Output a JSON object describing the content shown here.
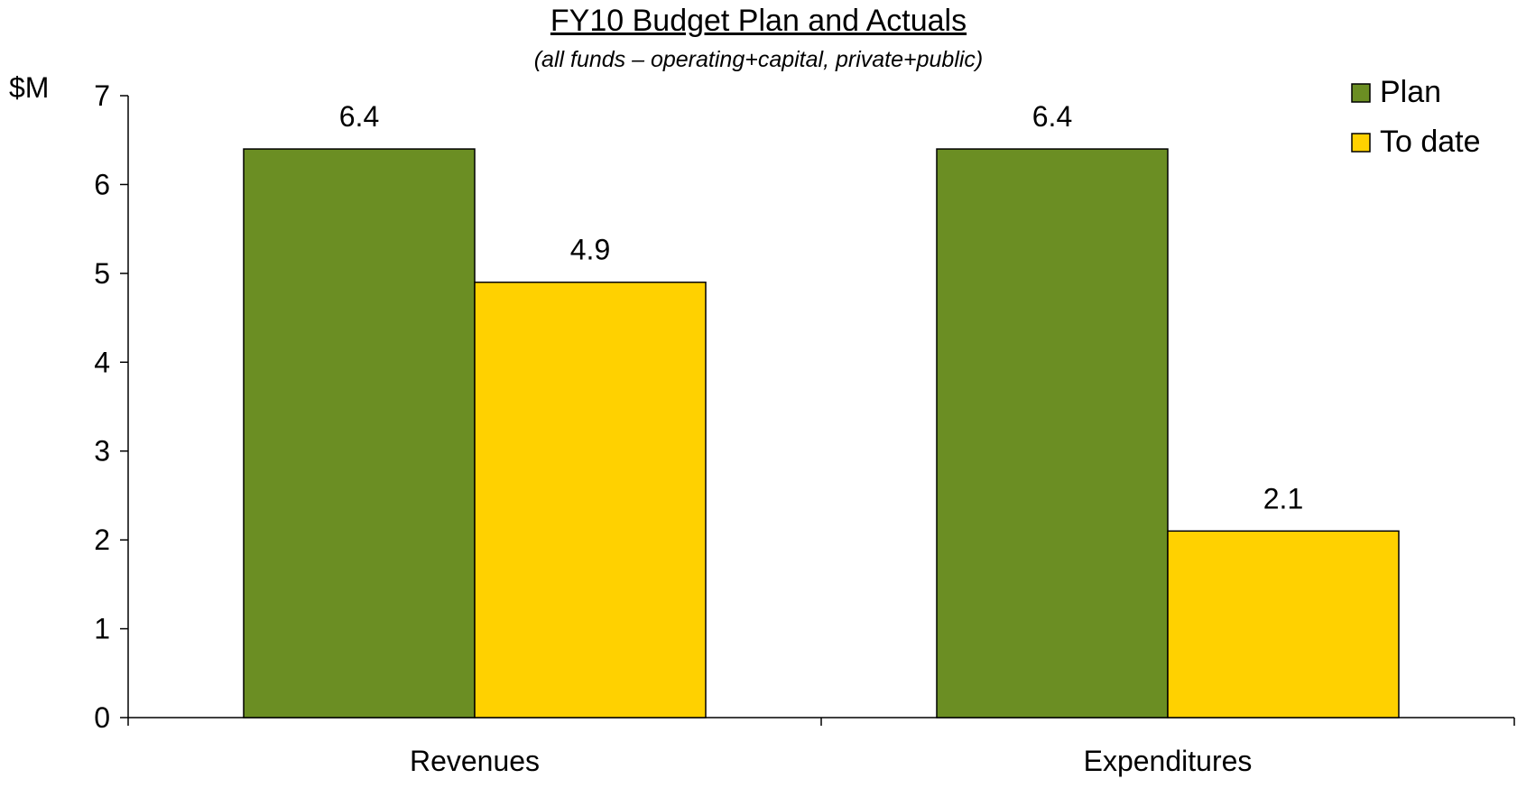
{
  "chart_data": {
    "type": "bar",
    "title": "FY10 Budget Plan and Actuals",
    "subtitle": "(all funds – operating+capital, private+public)",
    "ylabel": "$M",
    "xlabel": "",
    "ylim": [
      0,
      7
    ],
    "yticks": [
      0,
      1,
      2,
      3,
      4,
      5,
      6,
      7
    ],
    "categories": [
      "Revenues",
      "Expenditures"
    ],
    "series": [
      {
        "name": "Plan",
        "color": "#6b8e23",
        "values": [
          6.4,
          6.4
        ],
        "labels": [
          "6.4",
          "6.4"
        ]
      },
      {
        "name": "To date",
        "color": "#ffd100",
        "values": [
          4.9,
          2.1
        ],
        "labels": [
          "4.9",
          "2.1"
        ]
      }
    ],
    "legend_position": "top-right",
    "grid": false
  }
}
